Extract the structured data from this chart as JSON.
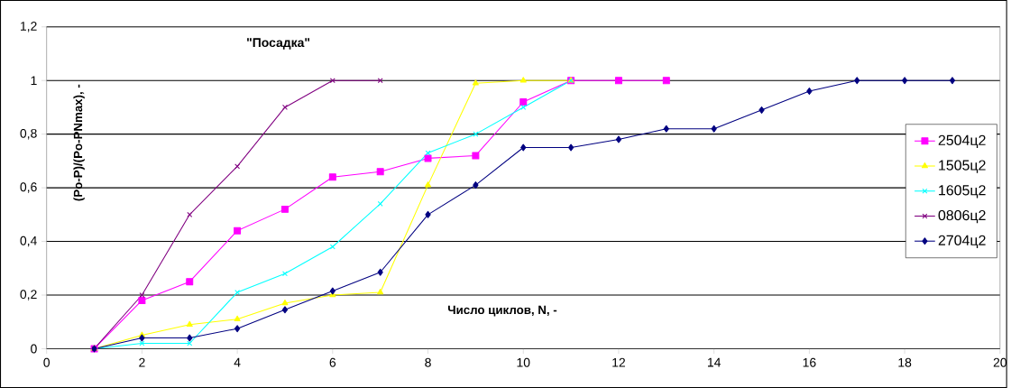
{
  "chart_data": {
    "type": "line",
    "title": "\"Посадка\"",
    "xlabel": "Число циклов, N, -",
    "ylabel": "(Po-P)/(Po-PNmax), -",
    "xlim": [
      0,
      20
    ],
    "xticks": [
      0,
      2,
      4,
      6,
      8,
      10,
      12,
      14,
      16,
      18,
      20
    ],
    "ylim": [
      0,
      1.2
    ],
    "yticks": [
      0,
      {
        "value": 0.2,
        "label": "0,2"
      },
      {
        "value": 0.4,
        "label": "0,4"
      },
      {
        "value": 0.6,
        "label": "0,6"
      },
      {
        "value": 0.8,
        "label": "0,8"
      },
      1,
      {
        "value": 1.2,
        "label": "1,2"
      }
    ],
    "grid": "y",
    "legend": "right",
    "line_style": "solid",
    "series": [
      {
        "name": "2504ц2",
        "color": "#ff00ff",
        "marker": "square",
        "x": [
          1,
          2,
          3,
          4,
          5,
          6,
          7,
          8,
          9,
          10,
          11,
          12,
          13
        ],
        "values": [
          0,
          0.18,
          0.25,
          0.44,
          0.52,
          0.64,
          0.66,
          0.71,
          0.72,
          0.92,
          1,
          1,
          1
        ]
      },
      {
        "name": "1505ц2",
        "color": "#ffff00",
        "marker": "triangle",
        "x": [
          1,
          2,
          3,
          4,
          5,
          6,
          7,
          8,
          9,
          10,
          11
        ],
        "values": [
          0,
          0.05,
          0.09,
          0.11,
          0.17,
          0.2,
          0.21,
          0.61,
          0.99,
          1,
          1
        ]
      },
      {
        "name": "1605ц2",
        "color": "#00ffff",
        "marker": "cross",
        "x": [
          1,
          2,
          3,
          4,
          5,
          6,
          7,
          8,
          9,
          10,
          11
        ],
        "values": [
          0,
          0.02,
          0.02,
          0.21,
          0.28,
          0.38,
          0.54,
          0.73,
          0.8,
          0.9,
          1
        ]
      },
      {
        "name": "0806ц2",
        "color": "#800080",
        "marker": "cross",
        "x": [
          1,
          2,
          3,
          4,
          5,
          6,
          7
        ],
        "values": [
          0,
          0.2,
          0.5,
          0.68,
          0.9,
          1,
          1
        ]
      },
      {
        "name": "2704ц2",
        "color": "#000080",
        "marker": "diamond",
        "x": [
          1,
          2,
          3,
          4,
          5,
          6,
          7,
          8,
          9,
          10,
          11,
          12,
          13,
          14,
          15,
          16,
          17,
          18,
          19
        ],
        "values": [
          0,
          0.04,
          0.04,
          0.075,
          0.145,
          0.215,
          0.285,
          0.5,
          0.61,
          0.75,
          0.75,
          0.78,
          0.82,
          0.82,
          0.89,
          0.96,
          1,
          1,
          1
        ]
      }
    ]
  }
}
